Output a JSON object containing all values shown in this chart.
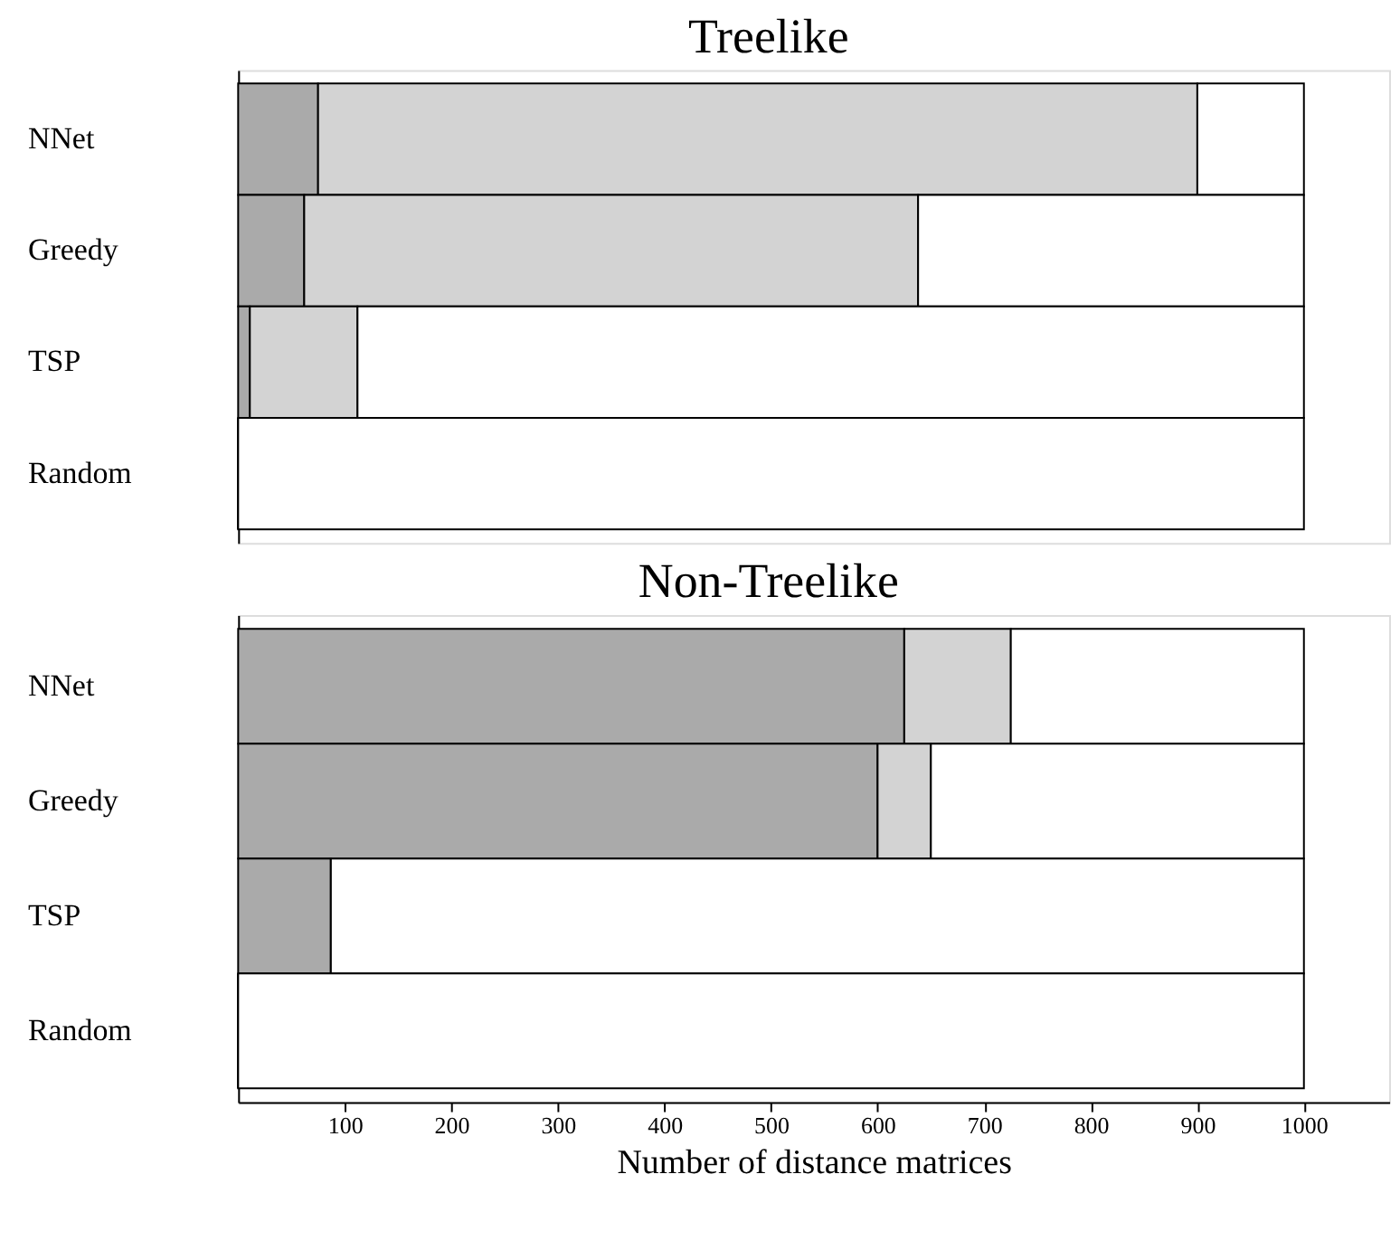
{
  "chart_data": [
    {
      "type": "bar",
      "title": "Treelike",
      "orientation": "horizontal",
      "stacked": true,
      "categories": [
        "NNet",
        "Greedy",
        "TSP",
        "Random"
      ],
      "series": [
        {
          "color": "#aaaaaa",
          "values": [
            75,
            62,
            11,
            0
          ]
        },
        {
          "color": "#d3d3d3",
          "values": [
            825,
            576,
            101,
            0
          ]
        },
        {
          "color": "#ffffff",
          "values": [
            100,
            362,
            888,
            1000
          ]
        }
      ],
      "xlim": [
        0,
        1080
      ],
      "xticks": [
        100,
        200,
        300,
        400,
        500,
        600,
        700,
        800,
        900,
        1000
      ],
      "tick_labels": "y",
      "grid": false,
      "legend": false
    },
    {
      "type": "bar",
      "title": "Non-Treelike",
      "orientation": "horizontal",
      "stacked": true,
      "xlabel": "Number of distance matrices",
      "categories": [
        "NNet",
        "Greedy",
        "TSP",
        "Random"
      ],
      "series": [
        {
          "color": "#aaaaaa",
          "values": [
            625,
            600,
            87,
            0
          ]
        },
        {
          "color": "#d3d3d3",
          "values": [
            100,
            50,
            0,
            0
          ]
        },
        {
          "color": "#ffffff",
          "values": [
            275,
            350,
            913,
            1000
          ]
        }
      ],
      "xlim": [
        0,
        1080
      ],
      "xticks": [
        100,
        200,
        300,
        400,
        500,
        600,
        700,
        800,
        900,
        1000
      ],
      "grid": false,
      "legend": false
    }
  ]
}
